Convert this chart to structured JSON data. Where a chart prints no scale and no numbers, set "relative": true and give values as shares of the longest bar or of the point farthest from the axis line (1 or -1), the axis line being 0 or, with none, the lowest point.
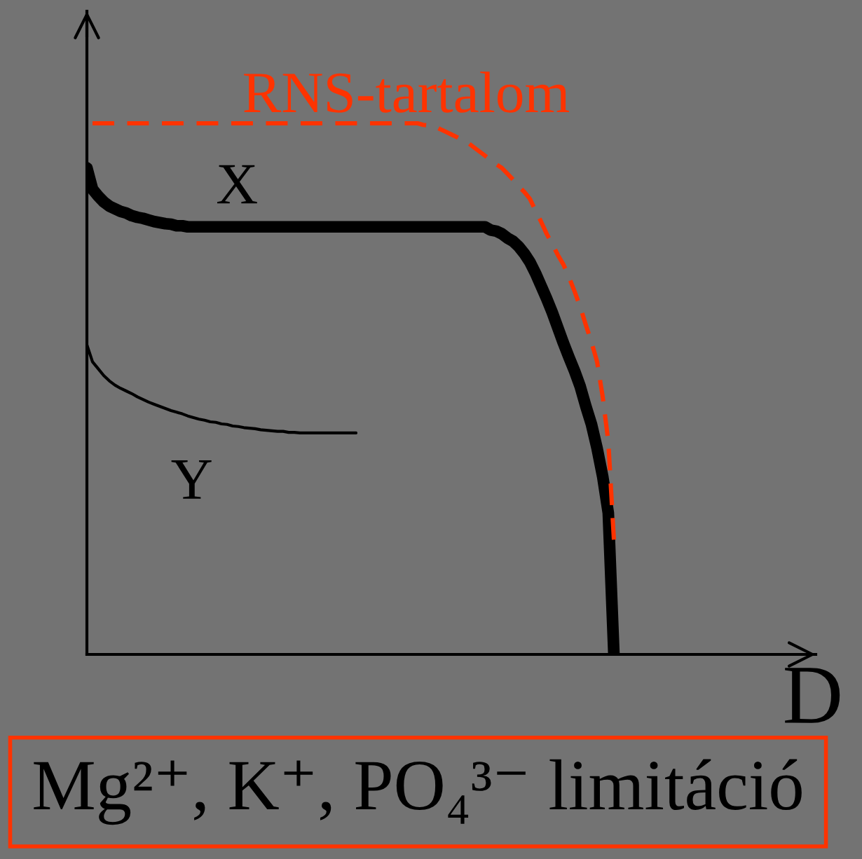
{
  "chart_data": {
    "type": "line",
    "xlabel": "D",
    "relative": true,
    "categories": [
      null,
      null,
      null,
      null,
      null,
      null,
      null,
      null,
      null,
      null,
      null,
      null,
      null,
      null,
      null,
      null,
      null,
      null,
      null,
      null,
      null,
      null,
      null,
      null,
      null,
      null,
      null,
      null,
      null,
      null,
      null,
      null,
      null,
      null,
      null,
      null,
      null,
      null,
      null,
      null,
      null,
      null,
      null,
      null,
      null,
      null,
      null,
      null,
      null,
      null,
      null,
      null,
      null,
      null,
      null,
      null,
      null,
      null,
      null,
      null,
      null,
      null,
      null,
      null,
      null,
      null,
      null,
      null,
      null,
      null,
      null,
      null,
      null,
      null,
      null,
      null,
      null,
      null,
      null,
      null,
      null,
      null,
      null,
      null,
      null,
      null,
      null,
      null,
      null,
      null,
      null,
      null,
      null,
      null,
      null,
      null,
      null,
      null,
      null,
      null,
      null,
      null,
      null,
      null,
      null,
      null,
      null,
      null,
      null,
      null,
      null,
      null,
      null,
      null,
      null,
      null,
      null,
      null,
      null,
      null,
      null,
      null,
      null,
      null,
      null,
      null,
      null,
      null,
      null,
      null,
      null
    ],
    "series": [
      {
        "name": "X",
        "color": "#000000",
        "line_style": "solid",
        "values": [
          0.916,
          0.876,
          0.863,
          0.852,
          0.844,
          0.839,
          0.834,
          0.831,
          0.826,
          0.823,
          0.821,
          0.818,
          0.815,
          0.813,
          0.811,
          0.81,
          0.807,
          0.807,
          0.805,
          0.805,
          0.805,
          0.805,
          0.805,
          0.805,
          0.805,
          0.805,
          0.805,
          0.805,
          0.805,
          0.805,
          0.805,
          0.805,
          0.805,
          0.805,
          0.805,
          0.805,
          0.805,
          0.805,
          0.805,
          0.805,
          0.805,
          0.805,
          0.805,
          0.805,
          0.805,
          0.805,
          0.805,
          0.805,
          0.805,
          0.805,
          0.805,
          0.805,
          0.805,
          0.805,
          0.805,
          0.805,
          0.805,
          0.805,
          0.805,
          0.805,
          0.805,
          0.805,
          0.805,
          0.805,
          0.805,
          0.805,
          0.805,
          0.805,
          0.805,
          0.805,
          0.805,
          0.805,
          0.799,
          0.797,
          0.792,
          0.784,
          0.778,
          0.768,
          0.755,
          0.739,
          0.718,
          0.694,
          0.67,
          0.644,
          0.615,
          0.586,
          0.559,
          0.533,
          0.504,
          0.467,
          0.433,
          0.388,
          0.335,
          0.266,
          0,
          null,
          null,
          null,
          null,
          null,
          null,
          null,
          null,
          null,
          null,
          null,
          null,
          null,
          null,
          null,
          null,
          null,
          null,
          null,
          null,
          null,
          null,
          null,
          null,
          null,
          null,
          null,
          null,
          null,
          null,
          null,
          null,
          null,
          null,
          null,
          null
        ]
      },
      {
        "name": "Y",
        "color": "#000000",
        "line_style": "solid",
        "values": [
          0.583,
          0.551,
          0.538,
          0.525,
          0.515,
          0.507,
          0.501,
          0.496,
          0.491,
          0.485,
          0.48,
          0.475,
          0.471,
          0.467,
          0.463,
          0.459,
          0.456,
          0.453,
          0.449,
          0.446,
          0.443,
          0.441,
          0.438,
          0.437,
          0.434,
          0.433,
          0.43,
          0.429,
          0.427,
          0.426,
          0.425,
          0.423,
          0.422,
          0.421,
          0.42,
          0.42,
          0.418,
          0.418,
          0.417,
          0.417,
          0.417,
          0.417,
          0.417,
          0.417,
          0.417,
          0.417,
          0.417,
          0.417,
          0.417,
          null,
          null,
          null,
          null,
          null,
          null,
          null,
          null,
          null,
          null,
          null,
          null,
          null,
          null,
          null,
          null,
          null,
          null,
          null,
          null,
          null,
          null,
          null,
          null,
          null,
          null,
          null,
          null,
          null,
          null,
          null,
          null,
          null,
          null,
          null,
          null,
          null,
          null,
          null,
          null,
          null,
          null,
          null,
          null,
          null,
          null,
          null,
          null,
          null,
          null,
          null,
          null,
          null,
          null,
          null,
          null,
          null,
          null,
          null,
          null,
          null,
          null,
          null,
          null,
          null,
          null,
          null,
          null,
          null,
          null,
          null,
          null,
          null,
          null,
          null,
          null,
          null,
          null,
          null,
          null,
          null,
          null
        ]
      },
      {
        "name": "RNS-tartalom",
        "color": "#ff3300",
        "line_style": "dashed",
        "values": [
          null,
          1.0,
          1.0,
          1.0,
          1.0,
          1.0,
          1.0,
          1.0,
          1.0,
          1.0,
          1.0,
          1.0,
          1.0,
          1.0,
          1.0,
          1.0,
          1.0,
          1.0,
          1.0,
          1.0,
          1.0,
          1.0,
          1.0,
          1.0,
          1.0,
          1.0,
          1.0,
          1.0,
          1.0,
          1.0,
          1.0,
          1.0,
          1.0,
          1.0,
          1.0,
          1.0,
          1.0,
          1.0,
          1.0,
          1.0,
          1.0,
          1.0,
          1.0,
          1.0,
          1.0,
          1.0,
          1.0,
          1.0,
          1.0,
          1.0,
          1.0,
          1.0,
          1.0,
          1.0,
          1.0,
          1.0,
          1.0,
          1.0,
          1.0,
          1.0,
          0.997,
          0.996,
          0.995,
          0.989,
          0.984,
          0.979,
          0.974,
          0.968,
          0.963,
          0.955,
          0.947,
          0.939,
          0.931,
          0.923,
          0.916,
          0.905,
          0.894,
          0.881,
          0.871,
          0.858,
          0.836,
          0.815,
          0.792,
          0.773,
          0.752,
          0.734,
          0.71,
          0.683,
          0.654,
          0.62,
          0.588,
          0.551,
          0.485,
          0.401,
          0.216,
          null,
          null,
          null,
          null,
          null,
          null,
          null,
          null,
          null,
          null,
          null,
          null,
          null,
          null,
          null,
          null,
          null,
          null,
          null,
          null,
          null,
          null,
          null,
          null,
          null,
          null,
          null,
          null,
          null,
          null,
          null,
          null,
          null,
          null,
          null,
          null
        ]
      }
    ],
    "annotations": [
      "Mg²⁺, K⁺, PO₄³⁻ limitáció"
    ]
  }
}
